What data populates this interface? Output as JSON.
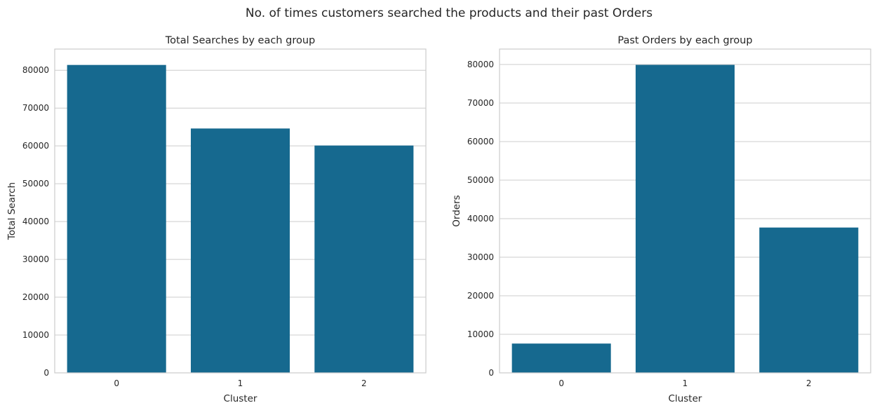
{
  "suptitle": "No. of times customers searched the products and their past Orders",
  "chart_data": [
    {
      "type": "bar",
      "title": "Total Searches by each group",
      "xlabel": "Cluster",
      "ylabel": "Total Search",
      "categories": [
        "0",
        "1",
        "2"
      ],
      "values": [
        81400,
        64600,
        60100
      ],
      "ylim": [
        0,
        85600
      ],
      "yticks": [
        0,
        10000,
        20000,
        30000,
        40000,
        50000,
        60000,
        70000,
        80000
      ],
      "bar_color": "#16698f",
      "grid": "horizontal"
    },
    {
      "type": "bar",
      "title": "Past Orders by each group",
      "xlabel": "Cluster",
      "ylabel": "Orders",
      "categories": [
        "0",
        "1",
        "2"
      ],
      "values": [
        7600,
        79900,
        37700
      ],
      "ylim": [
        0,
        84000
      ],
      "yticks": [
        0,
        10000,
        20000,
        30000,
        40000,
        50000,
        60000,
        70000,
        80000
      ],
      "bar_color": "#16698f",
      "grid": "horizontal"
    }
  ]
}
